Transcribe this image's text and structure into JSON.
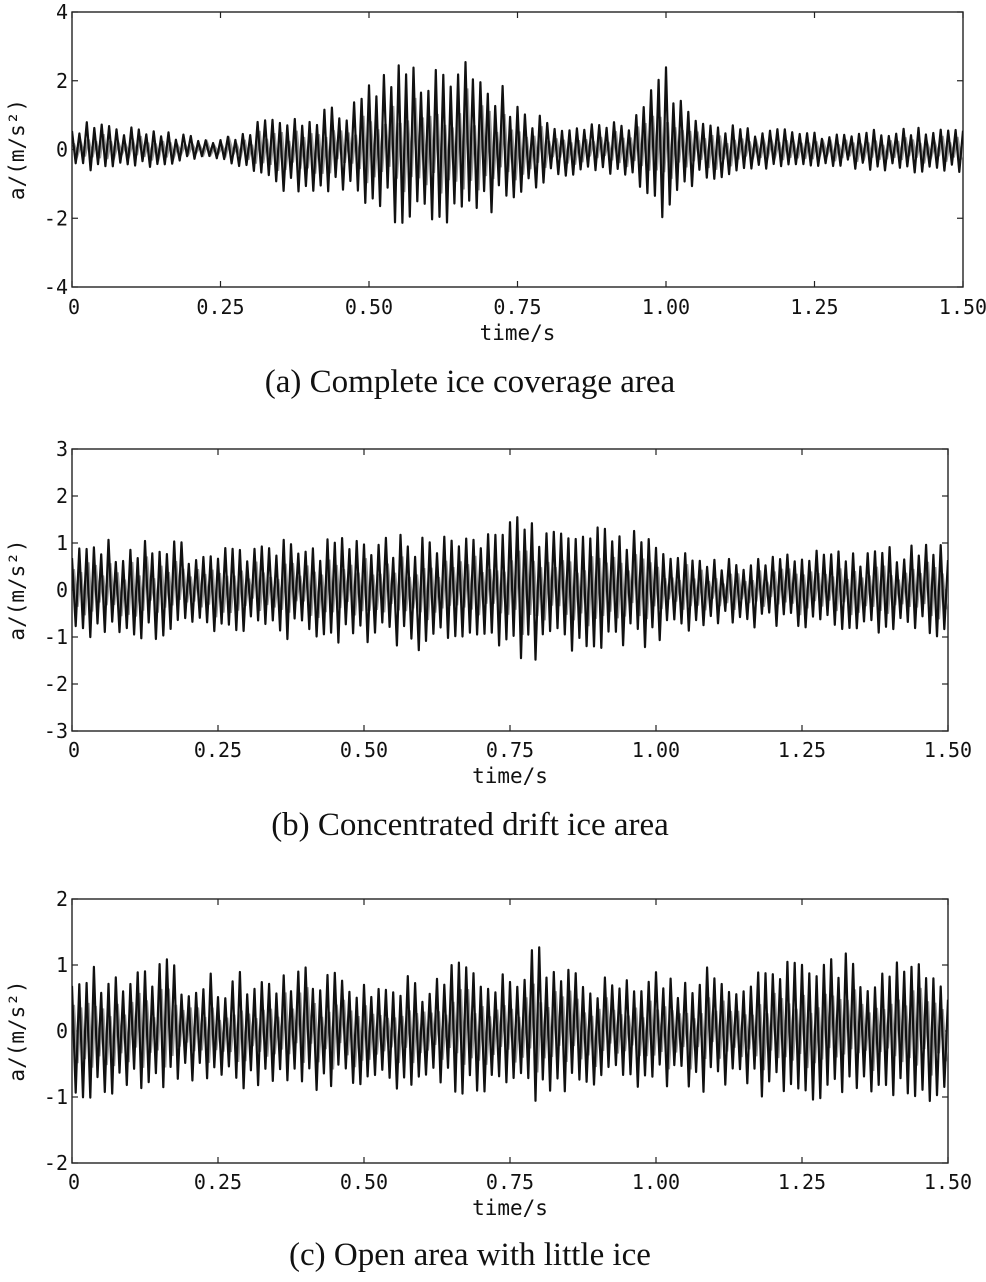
{
  "chart_data": [
    {
      "type": "line",
      "caption": "(a) Complete ice coverage area",
      "xlabel": "time/s",
      "ylabel": "a/(m/s²)",
      "xlim": [
        0,
        1.5
      ],
      "ylim": [
        -4,
        4
      ],
      "xticks": [
        "0",
        "0.25",
        "0.50",
        "0.75",
        "1.00",
        "1.25",
        "1.50"
      ],
      "yticks": [
        "-4",
        "-2",
        "0",
        "2",
        "4"
      ],
      "grid": false,
      "series": [
        {
          "color": "#111111",
          "x": [
            0,
            0.05,
            0.1,
            0.15,
            0.2,
            0.25,
            0.3,
            0.35,
            0.4,
            0.45,
            0.5,
            0.55,
            0.6,
            0.65,
            0.7,
            0.75,
            0.8,
            0.85,
            0.9,
            0.95,
            1.0,
            1.05,
            1.1,
            1.15,
            1.2,
            1.25,
            1.3,
            1.35,
            1.4,
            1.45,
            1.5
          ],
          "y": [
            0.8,
            0.9,
            0.7,
            0.6,
            0.4,
            0.3,
            0.7,
            1.1,
            1.2,
            1.3,
            1.9,
            2.6,
            2.4,
            2.6,
            2.6,
            1.3,
            0.9,
            0.8,
            0.7,
            1.1,
            2.5,
            0.9,
            0.8,
            0.6,
            0.6,
            0.5,
            0.5,
            0.6,
            0.6,
            0.7,
            0.8
          ],
          "y_lower": [
            -0.6,
            -0.7,
            -0.6,
            -0.5,
            -0.3,
            -0.3,
            -0.6,
            -1.4,
            -1.2,
            -1.3,
            -1.6,
            -2.2,
            -2.3,
            -2.4,
            -2.1,
            -1.5,
            -0.9,
            -0.8,
            -0.7,
            -1.2,
            -2.1,
            -1.0,
            -0.8,
            -0.6,
            -0.5,
            -0.5,
            -0.5,
            -0.7,
            -0.7,
            -0.7,
            -0.8
          ]
        }
      ]
    },
    {
      "type": "line",
      "caption": "(b) Concentrated drift ice area",
      "xlabel": "time/s",
      "ylabel": "a/(m/s²)",
      "xlim": [
        0,
        1.5
      ],
      "ylim": [
        -3,
        3
      ],
      "xticks": [
        "0",
        "0.25",
        "0.50",
        "0.75",
        "1.00",
        "1.25",
        "1.50"
      ],
      "yticks": [
        "-3",
        "-2",
        "-1",
        "0",
        "1",
        "2",
        "3"
      ],
      "grid": false,
      "series": [
        {
          "color": "#111111",
          "x": [
            0,
            0.05,
            0.1,
            0.15,
            0.2,
            0.25,
            0.3,
            0.35,
            0.4,
            0.45,
            0.5,
            0.55,
            0.6,
            0.65,
            0.7,
            0.75,
            0.8,
            0.85,
            0.9,
            0.95,
            1.0,
            1.05,
            1.1,
            1.15,
            1.2,
            1.25,
            1.3,
            1.35,
            1.4,
            1.45,
            1.5
          ],
          "y": [
            1.0,
            1.1,
            1.0,
            1.1,
            1.0,
            0.9,
            1.0,
            1.1,
            1.0,
            1.2,
            1.1,
            1.2,
            1.3,
            1.2,
            1.3,
            1.7,
            1.4,
            1.3,
            1.4,
            1.3,
            1.2,
            0.9,
            0.7,
            0.7,
            0.8,
            0.9,
            0.9,
            0.9,
            1.0,
            1.0,
            1.0
          ],
          "y_lower": [
            -1.0,
            -1.1,
            -1.0,
            -1.1,
            -1.0,
            -0.9,
            -1.0,
            -1.1,
            -1.0,
            -1.2,
            -1.1,
            -1.2,
            -1.3,
            -1.2,
            -1.3,
            -1.8,
            -1.6,
            -1.4,
            -1.5,
            -1.3,
            -1.2,
            -0.9,
            -0.7,
            -0.8,
            -0.8,
            -0.9,
            -0.9,
            -1.0,
            -1.0,
            -1.0,
            -1.0
          ]
        }
      ]
    },
    {
      "type": "line",
      "caption": "(c) Open area with little ice",
      "xlabel": "time/s",
      "ylabel": "a/(m/s²)",
      "xlim": [
        0,
        1.5
      ],
      "ylim": [
        -2,
        2
      ],
      "xticks": [
        "0",
        "0.25",
        "0.50",
        "0.75",
        "1.00",
        "1.25",
        "1.50"
      ],
      "yticks": [
        "-2",
        "-1",
        "0",
        "1",
        "2"
      ],
      "grid": false,
      "series": [
        {
          "color": "#111111",
          "x": [
            0,
            0.05,
            0.1,
            0.15,
            0.2,
            0.25,
            0.3,
            0.35,
            0.4,
            0.45,
            0.5,
            0.55,
            0.6,
            0.65,
            0.7,
            0.75,
            0.8,
            0.85,
            0.9,
            0.95,
            1.0,
            1.05,
            1.1,
            1.15,
            1.2,
            1.25,
            1.3,
            1.35,
            1.4,
            1.45,
            1.5
          ],
          "y": [
            1.0,
            1.0,
            0.9,
            1.2,
            0.9,
            0.9,
            0.9,
            0.9,
            1.0,
            0.9,
            0.9,
            0.9,
            0.8,
            1.1,
            0.9,
            1.0,
            1.4,
            1.0,
            0.9,
            0.9,
            0.9,
            0.9,
            1.0,
            1.0,
            1.1,
            1.1,
            1.3,
            1.1,
            1.0,
            1.3,
            0.8
          ],
          "y_lower": [
            -1.1,
            -1.0,
            -0.9,
            -1.0,
            -0.8,
            -0.9,
            -0.9,
            -0.8,
            -0.9,
            -0.9,
            -1.0,
            -0.9,
            -0.8,
            -1.0,
            -1.0,
            -1.0,
            -1.3,
            -1.0,
            -0.9,
            -0.9,
            -0.9,
            -0.9,
            -1.0,
            -1.0,
            -1.1,
            -1.1,
            -1.2,
            -1.1,
            -1.0,
            -1.1,
            -1.0
          ]
        }
      ]
    }
  ]
}
